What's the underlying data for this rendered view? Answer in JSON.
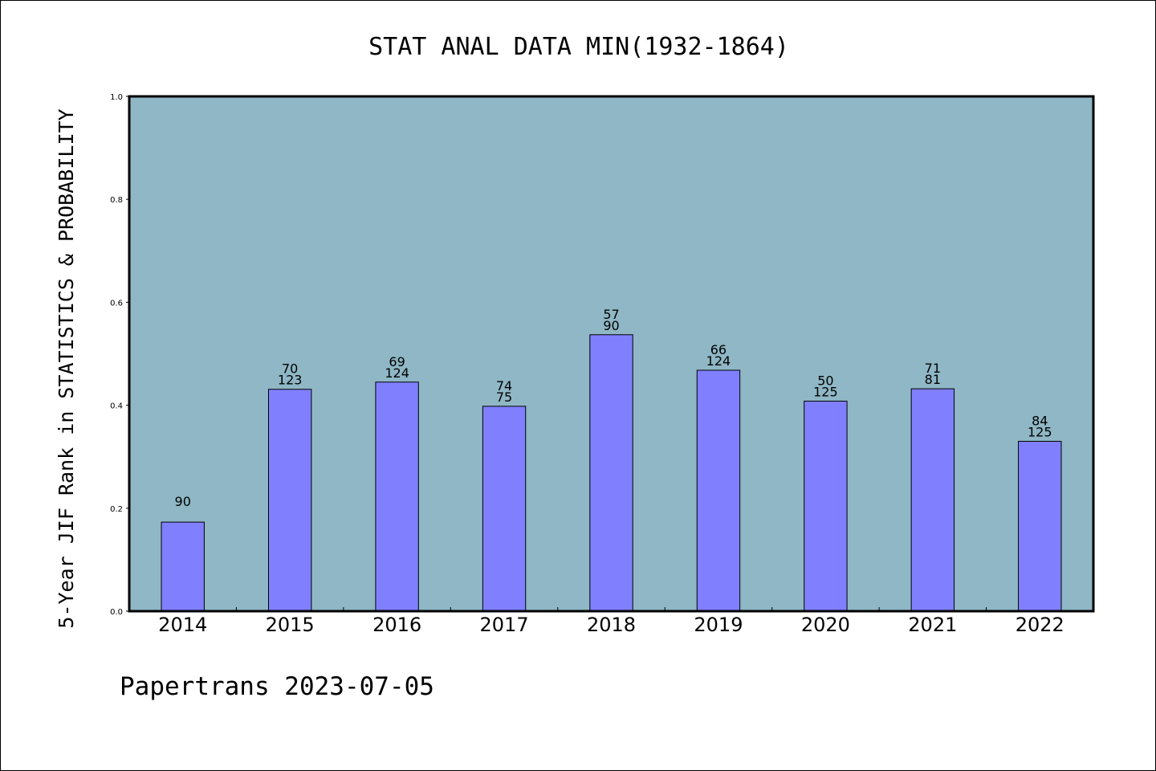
{
  "footer": "Papertrans 2023-07-05",
  "colors": {
    "plot_background": "#8fb7c5",
    "bar_fill": "#8080ff",
    "bar_stroke": "#000000",
    "axis": "#000000"
  },
  "chart_data": {
    "type": "bar",
    "title": "STAT ANAL DATA MIN(1932-1864)",
    "ylabel": "5-Year JIF Rank in STATISTICS & PROBABILITY",
    "xlabel": "",
    "ylim": [
      0,
      1.0
    ],
    "yticks": [
      "0.0",
      "0.2",
      "0.4",
      "0.6",
      "0.8",
      "1.0"
    ],
    "grid": false,
    "categories": [
      "2014",
      "2015",
      "2016",
      "2017",
      "2018",
      "2019",
      "2020",
      "2021",
      "2022"
    ],
    "values": [
      0.173,
      0.431,
      0.445,
      0.398,
      0.537,
      0.468,
      0.408,
      0.432,
      0.33
    ],
    "labels_top": [
      "",
      "70",
      "69",
      "74",
      "57",
      "66",
      "50",
      "71",
      "84"
    ],
    "labels_bottom": [
      "90",
      "123",
      "124",
      "75",
      "90",
      "124",
      "125",
      "81",
      "125"
    ]
  }
}
